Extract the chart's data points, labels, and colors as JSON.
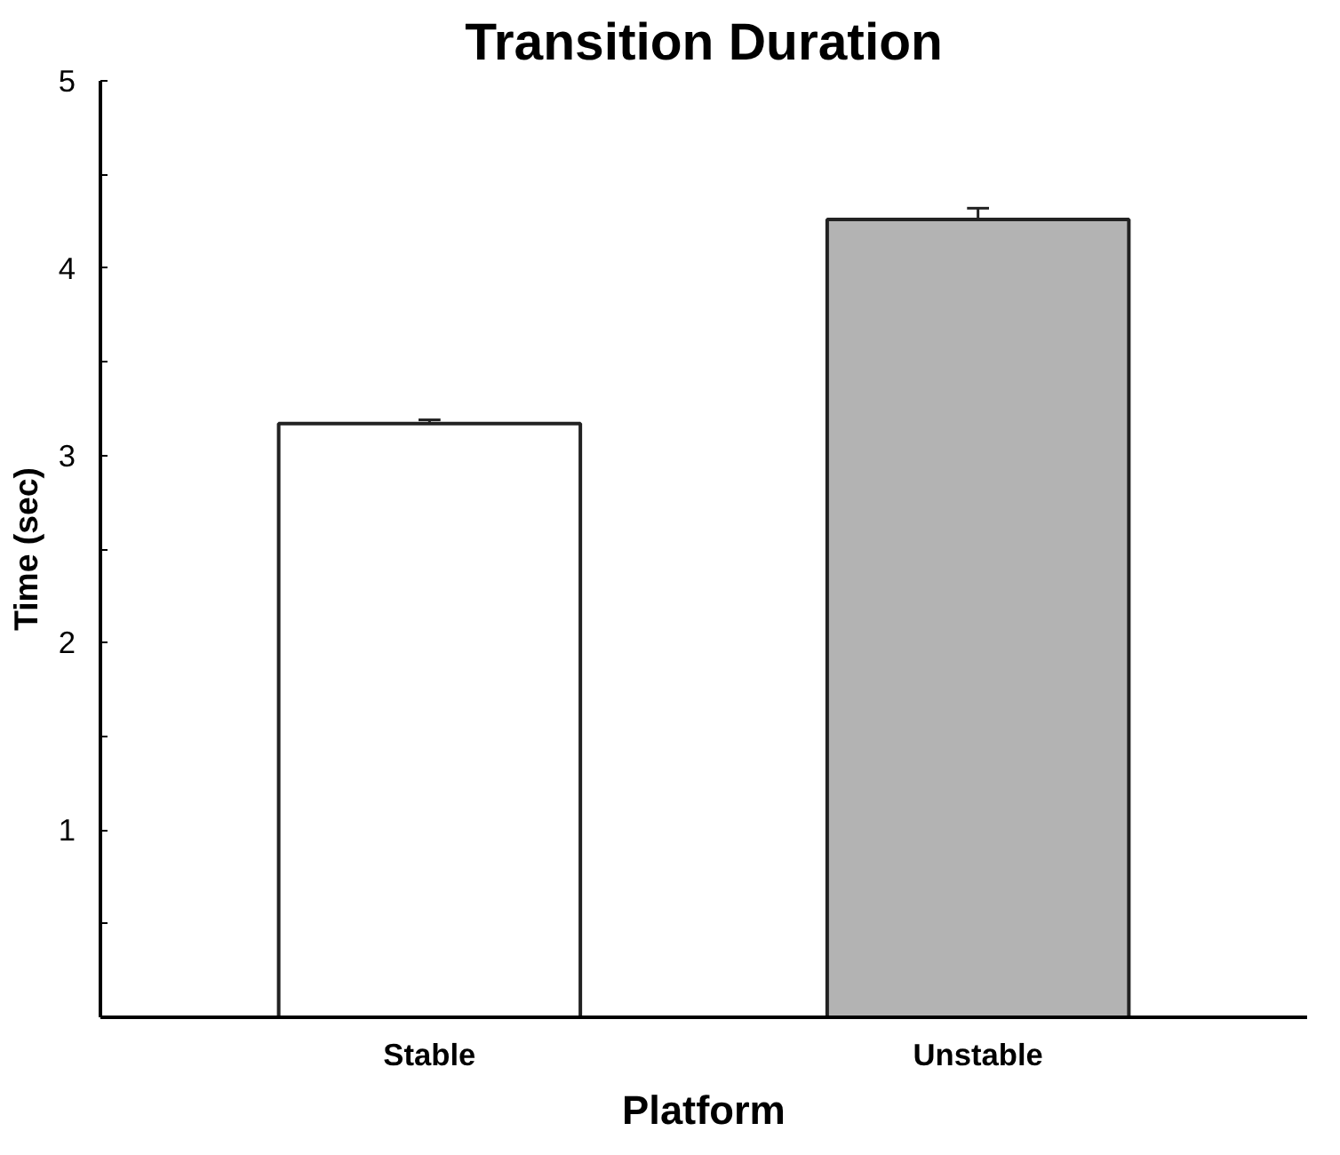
{
  "chart_data": {
    "type": "bar",
    "title": "Transition Duration",
    "xlabel": "Platform",
    "ylabel": "Time (sec)",
    "categories": [
      "Stable",
      "Unstable"
    ],
    "values": [
      3.17,
      4.26
    ],
    "colors": [
      "#ffffff",
      "#b3b3b3"
    ],
    "errors": [
      0.02,
      0.06
    ],
    "ylim": [
      0,
      5
    ],
    "yticks": [
      {
        "value": 0.5,
        "label": null
      },
      1,
      {
        "value": 1.5,
        "label": null
      },
      2,
      {
        "value": 2.5,
        "label": null
      },
      3,
      {
        "value": 3.5,
        "label": null
      },
      4,
      {
        "value": 4.5,
        "label": null
      },
      5
    ],
    "grid": false
  }
}
